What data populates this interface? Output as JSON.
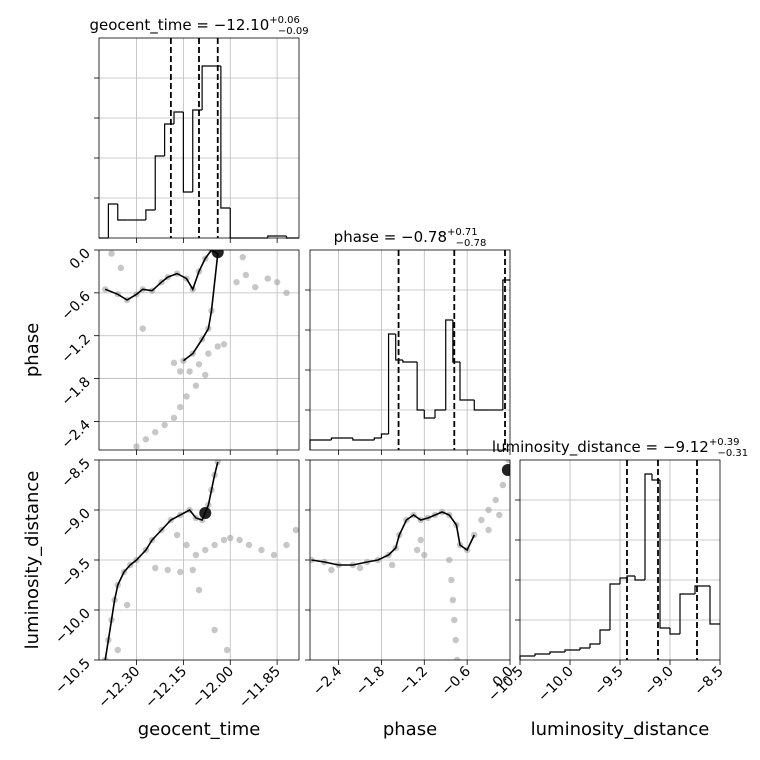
{
  "figure": {
    "type": "corner-plot",
    "parameters": [
      "geocent_time",
      "phase",
      "luminosity_distance"
    ]
  },
  "chart_data": [
    {
      "type": "bar",
      "panel": "hist-geocent_time",
      "title": {
        "prefix": "geocent_time = ",
        "median": "−12.10",
        "plus": "+0.06",
        "minus": "−0.09"
      },
      "xlim": [
        -12.42,
        -11.78
      ],
      "ylim": [
        0,
        1
      ],
      "bin_edges": [
        -12.42,
        -12.39,
        -12.36,
        -12.33,
        -12.3,
        -12.27,
        -12.24,
        -12.21,
        -12.18,
        -12.15,
        -12.12,
        -12.09,
        -12.06,
        -12.03,
        -12.0,
        -11.97,
        -11.94,
        -11.91,
        -11.88,
        -11.85,
        -11.82,
        -11.78
      ],
      "values": [
        0.0,
        0.17,
        0.09,
        0.09,
        0.09,
        0.14,
        0.41,
        0.57,
        0.63,
        0.23,
        0.64,
        0.86,
        0.86,
        0.15,
        0.0,
        0.0,
        0.0,
        0.0,
        0.01,
        0.01,
        0.0
      ],
      "quantile_lines": [
        -12.19,
        -12.1,
        -12.04
      ]
    },
    {
      "type": "bar",
      "panel": "hist-phase",
      "title": {
        "prefix": "phase = ",
        "median": "−0.78",
        "plus": "+0.71",
        "minus": "−0.78"
      },
      "xlim": [
        -2.8,
        0.0
      ],
      "ylim": [
        0,
        1
      ],
      "bin_edges": [
        -2.8,
        -2.5,
        -2.2,
        -1.9,
        -1.8,
        -1.7,
        -1.6,
        -1.5,
        -1.3,
        -1.2,
        -1.05,
        -0.9,
        -0.8,
        -0.7,
        -0.5,
        -0.3,
        -0.1,
        0.0
      ],
      "values": [
        0.05,
        0.06,
        0.05,
        0.06,
        0.08,
        0.58,
        0.45,
        0.44,
        0.2,
        0.16,
        0.2,
        0.65,
        0.44,
        0.25,
        0.2,
        0.2,
        0.85
      ],
      "quantile_lines": [
        -1.56,
        -0.78,
        -0.07
      ]
    },
    {
      "type": "bar",
      "panel": "hist-luminosity_distance",
      "title": {
        "prefix": "luminosity_distance = ",
        "median": "−9.12",
        "plus": "+0.39",
        "minus": "−0.31"
      },
      "xlim": [
        -10.5,
        -8.5
      ],
      "ylim": [
        0,
        1
      ],
      "bin_edges": [
        -10.5,
        -10.35,
        -10.2,
        -10.05,
        -9.9,
        -9.8,
        -9.7,
        -9.6,
        -9.5,
        -9.43,
        -9.35,
        -9.25,
        -9.18,
        -9.1,
        -9.0,
        -8.9,
        -8.75,
        -8.6,
        -8.5
      ],
      "values": [
        0.02,
        0.03,
        0.04,
        0.05,
        0.06,
        0.08,
        0.15,
        0.38,
        0.41,
        0.42,
        0.4,
        0.93,
        0.9,
        0.16,
        0.13,
        0.33,
        0.37,
        0.18
      ],
      "quantile_lines": [
        -9.43,
        -9.12,
        -8.73
      ]
    },
    {
      "type": "scatter",
      "panel": "geocent_time-vs-phase",
      "xlim": [
        -12.42,
        -11.78
      ],
      "ylim": [
        -2.8,
        0.0
      ],
      "points": [
        [
          -12.4,
          -0.55
        ],
        [
          -12.36,
          -0.62
        ],
        [
          -12.33,
          -0.7
        ],
        [
          -12.3,
          -0.62
        ],
        [
          -12.28,
          -0.55
        ],
        [
          -12.25,
          -0.57
        ],
        [
          -12.22,
          -0.45
        ],
        [
          -12.2,
          -0.38
        ],
        [
          -12.17,
          -0.33
        ],
        [
          -12.14,
          -0.4
        ],
        [
          -12.12,
          -0.55
        ],
        [
          -12.1,
          -0.3
        ],
        [
          -12.08,
          -0.12
        ],
        [
          -12.06,
          0.0
        ],
        [
          -12.04,
          -0.05
        ],
        [
          -12.06,
          -0.85
        ],
        [
          -12.07,
          -1.1
        ],
        [
          -12.09,
          -1.25
        ],
        [
          -12.12,
          -1.45
        ],
        [
          -12.15,
          -1.55
        ],
        [
          -12.18,
          -1.58
        ],
        [
          -12.16,
          -1.7
        ],
        [
          -12.13,
          -1.7
        ],
        [
          -12.1,
          -1.6
        ],
        [
          -12.07,
          -1.45
        ],
        [
          -12.04,
          -1.35
        ],
        [
          -12.02,
          -1.32
        ],
        [
          -12.08,
          -1.75
        ],
        [
          -12.11,
          -1.9
        ],
        [
          -12.14,
          -2.05
        ],
        [
          -12.16,
          -2.2
        ],
        [
          -12.18,
          -2.35
        ],
        [
          -12.21,
          -2.45
        ],
        [
          -12.24,
          -2.55
        ],
        [
          -12.27,
          -2.65
        ],
        [
          -12.3,
          -2.75
        ],
        [
          -11.98,
          -0.45
        ],
        [
          -11.95,
          -0.35
        ],
        [
          -11.92,
          -0.52
        ],
        [
          -11.88,
          -0.4
        ],
        [
          -11.85,
          -0.45
        ],
        [
          -11.82,
          -0.6
        ],
        [
          -12.38,
          -0.05
        ],
        [
          -12.35,
          -0.25
        ],
        [
          -12.28,
          -1.1
        ],
        [
          -11.96,
          -0.1
        ]
      ],
      "density_peak": [
        -12.04,
        -0.03
      ]
    },
    {
      "type": "scatter",
      "panel": "geocent_time-vs-luminosity_distance",
      "xlim": [
        -12.42,
        -11.78
      ],
      "ylim": [
        -10.5,
        -8.5
      ],
      "points": [
        [
          -12.4,
          -10.5
        ],
        [
          -12.39,
          -10.3
        ],
        [
          -12.38,
          -10.1
        ],
        [
          -12.37,
          -9.9
        ],
        [
          -12.36,
          -9.75
        ],
        [
          -12.34,
          -9.62
        ],
        [
          -12.32,
          -9.55
        ],
        [
          -12.3,
          -9.5
        ],
        [
          -12.27,
          -9.4
        ],
        [
          -12.25,
          -9.3
        ],
        [
          -12.22,
          -9.2
        ],
        [
          -12.19,
          -9.1
        ],
        [
          -12.16,
          -9.05
        ],
        [
          -12.13,
          -9.0
        ],
        [
          -12.11,
          -9.08
        ],
        [
          -12.09,
          -9.1
        ],
        [
          -12.07,
          -8.95
        ],
        [
          -12.06,
          -8.8
        ],
        [
          -12.05,
          -8.65
        ],
        [
          -12.04,
          -8.52
        ],
        [
          -12.17,
          -9.25
        ],
        [
          -12.14,
          -9.35
        ],
        [
          -12.11,
          -9.45
        ],
        [
          -12.08,
          -9.4
        ],
        [
          -12.05,
          -9.35
        ],
        [
          -12.02,
          -9.3
        ],
        [
          -12.0,
          -9.28
        ],
        [
          -11.97,
          -9.3
        ],
        [
          -11.94,
          -9.35
        ],
        [
          -11.9,
          -9.4
        ],
        [
          -11.86,
          -9.45
        ],
        [
          -11.82,
          -9.35
        ],
        [
          -11.79,
          -9.2
        ],
        [
          -12.24,
          -9.58
        ],
        [
          -12.2,
          -9.6
        ],
        [
          -12.16,
          -9.62
        ],
        [
          -12.12,
          -9.6
        ],
        [
          -12.36,
          -10.4
        ],
        [
          -12.33,
          -9.95
        ],
        [
          -12.1,
          -9.8
        ],
        [
          -12.05,
          -10.2
        ],
        [
          -12.01,
          -10.4
        ]
      ],
      "density_peak": [
        -12.08,
        -9.03
      ]
    },
    {
      "type": "scatter",
      "panel": "phase-vs-luminosity_distance",
      "xlim": [
        -2.8,
        0.0
      ],
      "ylim": [
        -10.5,
        -8.5
      ],
      "points": [
        [
          -2.78,
          -9.5
        ],
        [
          -2.6,
          -9.52
        ],
        [
          -2.4,
          -9.55
        ],
        [
          -2.2,
          -9.55
        ],
        [
          -2.0,
          -9.52
        ],
        [
          -1.85,
          -9.5
        ],
        [
          -1.7,
          -9.45
        ],
        [
          -1.6,
          -9.38
        ],
        [
          -1.55,
          -9.25
        ],
        [
          -1.45,
          -9.1
        ],
        [
          -1.35,
          -9.05
        ],
        [
          -1.25,
          -9.1
        ],
        [
          -1.15,
          -9.08
        ],
        [
          -1.05,
          -9.05
        ],
        [
          -0.95,
          -9.02
        ],
        [
          -0.85,
          -9.05
        ],
        [
          -0.75,
          -9.15
        ],
        [
          -0.7,
          -9.35
        ],
        [
          -0.6,
          -9.4
        ],
        [
          -0.5,
          -9.25
        ],
        [
          -0.4,
          -9.1
        ],
        [
          -0.3,
          -9.0
        ],
        [
          -0.2,
          -8.9
        ],
        [
          -0.1,
          -8.75
        ],
        [
          -0.05,
          -8.6
        ],
        [
          -0.02,
          -8.5
        ],
        [
          -1.25,
          -9.3
        ],
        [
          -1.3,
          -9.4
        ],
        [
          -1.2,
          -9.45
        ],
        [
          -0.85,
          -9.5
        ],
        [
          -0.82,
          -9.7
        ],
        [
          -0.8,
          -9.9
        ],
        [
          -0.78,
          -10.1
        ],
        [
          -0.76,
          -10.3
        ],
        [
          -0.74,
          -10.5
        ],
        [
          -2.5,
          -9.6
        ],
        [
          -2.1,
          -9.58
        ],
        [
          -1.65,
          -9.55
        ],
        [
          -0.3,
          -9.2
        ],
        [
          -0.15,
          -9.05
        ]
      ],
      "density_peak": [
        -0.03,
        -8.6
      ]
    }
  ],
  "axes": {
    "xlabels": {
      "geocent_time": "geocent_time",
      "phase": "phase",
      "luminosity_distance": "luminosity_distance"
    },
    "ylabels": {
      "phase": "phase",
      "luminosity_distance": "luminosity_distance"
    },
    "ticks": {
      "geocent_time": {
        "values": [
          -12.3,
          -12.15,
          -12.0,
          -11.85
        ],
        "labels": [
          "−12.30",
          "−12.15",
          "−12.00",
          "−11.85"
        ]
      },
      "phase": {
        "values": [
          -2.4,
          -1.8,
          -1.2,
          -0.6,
          0.0
        ],
        "labels": [
          "−2.4",
          "−1.8",
          "−1.2",
          "−0.6",
          "0.0"
        ]
      },
      "luminosity_distance": {
        "values": [
          -10.5,
          -10.0,
          -9.5,
          -9.0,
          -8.5
        ],
        "labels": [
          "−10.5",
          "−10.0",
          "−9.5",
          "−9.0",
          "−8.5"
        ]
      }
    }
  },
  "style": {
    "line_color": "#000000",
    "grid_color": "#bbbbbb",
    "scatter_color": "#999999",
    "quantile_line_style": "dashed",
    "grid": true
  }
}
